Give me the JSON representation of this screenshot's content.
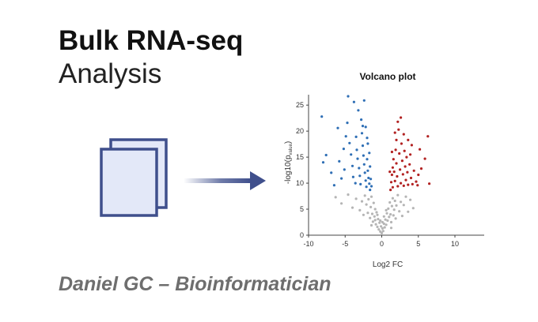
{
  "slide": {
    "title_bold": "Bulk RNA-seq",
    "title_light": "Analysis",
    "author": "Daniel GC – Bioinformatician"
  },
  "icons": {
    "documents": "documents-stack-icon",
    "arrow": "right-arrow-icon",
    "document_stroke_color": "#3f4f8c",
    "document_fill_color": "#e3e8f8",
    "arrow_color": "#3f4f8c"
  },
  "chart_data": {
    "type": "scatter",
    "title": "Volcano plot",
    "xlabel": "Log2 FC",
    "ylabel": "-log10(p",
    "ylabel_subscript": "value",
    "ylabel_suffix": ")",
    "xlim": [
      -10,
      14
    ],
    "ylim": [
      0,
      27
    ],
    "xticks": [
      -10,
      -5,
      0,
      5,
      10
    ],
    "yticks": [
      0,
      5,
      10,
      15,
      20,
      25
    ],
    "grid": false,
    "legend": "none",
    "colors": {
      "down": "#2f6fb5",
      "up": "#b22222",
      "ns": "#b5b5b5"
    },
    "series": [
      {
        "category": "down",
        "points": [
          [
            -8.2,
            22.8
          ],
          [
            -7.6,
            15.4
          ],
          [
            -8.0,
            14.0
          ],
          [
            -6.9,
            12.0
          ],
          [
            -6.5,
            9.6
          ],
          [
            -5.8,
            14.2
          ],
          [
            -5.2,
            16.6
          ],
          [
            -4.9,
            19.0
          ],
          [
            -5.1,
            12.6
          ],
          [
            -5.5,
            10.9
          ],
          [
            -4.7,
            21.6
          ],
          [
            -4.4,
            17.7
          ],
          [
            -4.2,
            15.5
          ],
          [
            -4.0,
            13.3
          ],
          [
            -3.9,
            11.2
          ],
          [
            -3.6,
            10.0
          ],
          [
            -3.5,
            18.9
          ],
          [
            -3.4,
            16.4
          ],
          [
            -3.3,
            14.7
          ],
          [
            -3.1,
            12.9
          ],
          [
            -3.0,
            11.4
          ],
          [
            -2.9,
            9.8
          ],
          [
            -2.8,
            22.2
          ],
          [
            -2.7,
            19.6
          ],
          [
            -2.6,
            17.2
          ],
          [
            -2.5,
            15.3
          ],
          [
            -2.4,
            13.6
          ],
          [
            -2.3,
            12.0
          ],
          [
            -2.2,
            10.5
          ],
          [
            -2.1,
            9.3
          ],
          [
            -2.0,
            14.6
          ],
          [
            -1.9,
            12.4
          ],
          [
            -1.8,
            11.0
          ],
          [
            -1.7,
            9.9
          ],
          [
            -1.6,
            13.2
          ],
          [
            -1.5,
            10.8
          ],
          [
            -1.4,
            9.4
          ],
          [
            -3.8,
            25.6
          ],
          [
            -2.4,
            25.9
          ],
          [
            -2.2,
            20.8
          ],
          [
            -1.9,
            17.6
          ],
          [
            -1.7,
            15.8
          ],
          [
            -4.6,
            26.7
          ],
          [
            -6.0,
            20.6
          ],
          [
            -3.2,
            24.0
          ],
          [
            -2.6,
            21.0
          ],
          [
            -2.0,
            18.7
          ],
          [
            -1.6,
            8.7
          ]
        ]
      },
      {
        "category": "up",
        "points": [
          [
            1.2,
            8.7
          ],
          [
            1.3,
            10.2
          ],
          [
            1.4,
            11.6
          ],
          [
            1.5,
            13.0
          ],
          [
            1.5,
            9.2
          ],
          [
            1.6,
            14.6
          ],
          [
            1.7,
            12.2
          ],
          [
            1.8,
            10.4
          ],
          [
            1.9,
            16.4
          ],
          [
            2.0,
            18.3
          ],
          [
            2.0,
            13.8
          ],
          [
            2.1,
            11.3
          ],
          [
            2.2,
            9.4
          ],
          [
            2.3,
            20.3
          ],
          [
            2.4,
            15.7
          ],
          [
            2.5,
            12.6
          ],
          [
            2.6,
            10.0
          ],
          [
            2.7,
            17.6
          ],
          [
            2.8,
            14.3
          ],
          [
            2.9,
            11.7
          ],
          [
            3.0,
            9.5
          ],
          [
            3.1,
            16.2
          ],
          [
            3.2,
            13.2
          ],
          [
            3.3,
            10.6
          ],
          [
            3.4,
            15.0
          ],
          [
            3.5,
            12.1
          ],
          [
            3.6,
            9.7
          ],
          [
            3.8,
            13.6
          ],
          [
            4.0,
            11.0
          ],
          [
            4.2,
            9.8
          ],
          [
            4.4,
            12.4
          ],
          [
            4.7,
            10.3
          ],
          [
            5.0,
            11.6
          ],
          [
            5.4,
            12.8
          ],
          [
            5.9,
            14.7
          ],
          [
            6.3,
            19.0
          ],
          [
            6.5,
            9.9
          ],
          [
            5.2,
            16.5
          ],
          [
            4.1,
            17.3
          ],
          [
            3.0,
            19.4
          ],
          [
            2.2,
            21.8
          ],
          [
            1.8,
            19.7
          ],
          [
            2.6,
            22.6
          ],
          [
            3.6,
            18.3
          ],
          [
            1.4,
            16.0
          ],
          [
            4.9,
            9.6
          ],
          [
            3.9,
            15.5
          ],
          [
            1.1,
            12.2
          ]
        ]
      },
      {
        "category": "ns",
        "points": [
          [
            -6.3,
            7.3
          ],
          [
            -5.5,
            6.1
          ],
          [
            -4.6,
            7.8
          ],
          [
            -4.0,
            5.3
          ],
          [
            -3.5,
            7.0
          ],
          [
            -3.0,
            4.8
          ],
          [
            -2.7,
            6.5
          ],
          [
            -2.5,
            3.9
          ],
          [
            -2.3,
            7.6
          ],
          [
            -2.1,
            5.9
          ],
          [
            -1.9,
            4.3
          ],
          [
            -1.8,
            6.9
          ],
          [
            -1.6,
            3.3
          ],
          [
            -1.5,
            5.4
          ],
          [
            -1.4,
            7.4
          ],
          [
            -1.3,
            4.1
          ],
          [
            -1.2,
            2.6
          ],
          [
            -1.1,
            6.2
          ],
          [
            -1.0,
            3.6
          ],
          [
            -0.9,
            5.0
          ],
          [
            -0.8,
            2.1
          ],
          [
            -0.7,
            4.4
          ],
          [
            -0.6,
            1.6
          ],
          [
            -0.5,
            3.1
          ],
          [
            -0.4,
            1.1
          ],
          [
            -0.3,
            2.4
          ],
          [
            -0.2,
            0.7
          ],
          [
            -0.1,
            1.7
          ],
          [
            0.0,
            0.4
          ],
          [
            0.1,
            1.3
          ],
          [
            0.2,
            0.8
          ],
          [
            0.3,
            2.2
          ],
          [
            0.4,
            1.5
          ],
          [
            0.5,
            3.0
          ],
          [
            0.6,
            2.0
          ],
          [
            0.7,
            4.2
          ],
          [
            0.8,
            2.8
          ],
          [
            0.9,
            5.1
          ],
          [
            1.0,
            3.5
          ],
          [
            1.1,
            6.3
          ],
          [
            1.2,
            4.0
          ],
          [
            1.3,
            2.5
          ],
          [
            1.4,
            5.6
          ],
          [
            1.5,
            7.1
          ],
          [
            1.6,
            3.8
          ],
          [
            1.7,
            4.9
          ],
          [
            1.8,
            6.6
          ],
          [
            1.9,
            3.2
          ],
          [
            2.0,
            5.7
          ],
          [
            2.2,
            7.7
          ],
          [
            2.4,
            4.6
          ],
          [
            2.6,
            6.4
          ],
          [
            2.8,
            3.7
          ],
          [
            3.0,
            5.8
          ],
          [
            3.3,
            7.4
          ],
          [
            3.6,
            4.5
          ],
          [
            3.9,
            6.8
          ],
          [
            4.3,
            5.2
          ],
          [
            -0.6,
            3.9
          ],
          [
            -0.9,
            2.9
          ],
          [
            0.3,
            3.6
          ],
          [
            0.6,
            4.8
          ],
          [
            -1.4,
            1.9
          ],
          [
            1.3,
            1.4
          ],
          [
            -0.2,
            2.8
          ],
          [
            0.1,
            2.5
          ]
        ]
      }
    ]
  }
}
